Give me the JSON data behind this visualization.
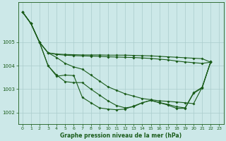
{
  "xlabel": "Graphe pression niveau de la mer (hPa)",
  "bg_color": "#cce8e8",
  "line_color": "#1a5c1a",
  "grid_color": "#aacccc",
  "xlim": [
    -0.5,
    23.5
  ],
  "ylim": [
    1001.5,
    1006.7
  ],
  "yticks": [
    1002,
    1003,
    1004,
    1005
  ],
  "xticks": [
    0,
    1,
    2,
    3,
    4,
    5,
    6,
    7,
    8,
    9,
    10,
    11,
    12,
    13,
    14,
    15,
    16,
    17,
    18,
    19,
    20,
    21,
    22,
    23
  ],
  "series": [
    {
      "x": [
        0,
        1,
        2,
        3,
        4,
        5,
        6,
        7,
        8,
        9,
        10,
        11,
        12,
        13,
        14,
        15,
        16,
        17,
        18,
        19,
        20,
        21,
        22
      ],
      "y": [
        1006.3,
        1005.8,
        1005.0,
        1004.55,
        1004.5,
        1004.48,
        1004.47,
        1004.46,
        1004.46,
        1004.46,
        1004.45,
        1004.45,
        1004.45,
        1004.44,
        1004.43,
        1004.42,
        1004.4,
        1004.38,
        1004.36,
        1004.34,
        1004.32,
        1004.3,
        1004.15
      ]
    },
    {
      "x": [
        0,
        1,
        2,
        3,
        4,
        5,
        6,
        7,
        8,
        9,
        10,
        11,
        12,
        13,
        14,
        15,
        16,
        17,
        18,
        19,
        20,
        21,
        22
      ],
      "y": [
        1006.3,
        1005.8,
        1005.0,
        1004.55,
        1004.48,
        1004.45,
        1004.43,
        1004.42,
        1004.41,
        1004.4,
        1004.38,
        1004.37,
        1004.36,
        1004.35,
        1004.33,
        1004.31,
        1004.28,
        1004.25,
        1004.2,
        1004.16,
        1004.13,
        1004.1,
        1004.15
      ]
    },
    {
      "x": [
        0,
        1,
        2,
        3,
        4,
        5,
        6,
        7,
        8,
        9,
        10,
        11,
        12,
        13,
        14,
        15,
        16,
        17,
        18,
        19,
        20,
        21,
        22
      ],
      "y": [
        1006.3,
        1005.8,
        1005.0,
        1004.55,
        1004.35,
        1004.1,
        1003.95,
        1003.85,
        1003.6,
        1003.35,
        1003.1,
        1002.95,
        1002.8,
        1002.7,
        1002.6,
        1002.55,
        1002.5,
        1002.48,
        1002.45,
        1002.42,
        1002.38,
        1003.08,
        1004.15
      ]
    },
    {
      "x": [
        0,
        1,
        2,
        3,
        4,
        5,
        6,
        7,
        8,
        9,
        10,
        11,
        12,
        13,
        14,
        15,
        16,
        17,
        18,
        19,
        20,
        21,
        22
      ],
      "y": [
        1006.3,
        1005.8,
        1005.0,
        1004.0,
        1003.6,
        1003.32,
        1003.28,
        1003.28,
        1003.0,
        1002.75,
        1002.5,
        1002.3,
        1002.2,
        1002.25,
        1002.42,
        1002.52,
        1002.43,
        1002.35,
        1002.25,
        1002.2,
        1002.85,
        1003.08,
        1004.18
      ]
    },
    {
      "x": [
        0,
        1,
        2,
        3,
        4,
        5,
        6,
        7,
        8,
        9,
        10,
        11,
        12,
        13,
        14,
        15,
        16,
        17,
        18,
        19,
        20,
        21,
        22
      ],
      "y": [
        1006.3,
        1005.8,
        1005.0,
        1004.0,
        1003.55,
        1003.6,
        1003.58,
        1002.65,
        1002.42,
        1002.2,
        1002.15,
        1002.12,
        1002.15,
        1002.28,
        1002.42,
        1002.52,
        1002.42,
        1002.32,
        1002.18,
        1002.18,
        1002.82,
        1003.05,
        1004.18
      ]
    }
  ]
}
